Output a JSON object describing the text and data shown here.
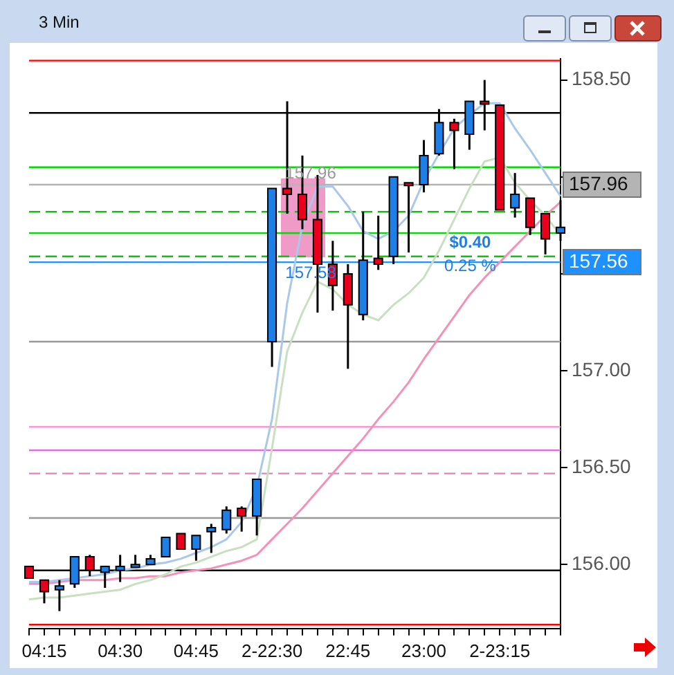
{
  "chart_data": {
    "type": "candlestick",
    "title": "3 Min",
    "categories": [
      null,
      "04:15",
      null,
      null,
      null,
      null,
      "04:30",
      null,
      null,
      null,
      null,
      "04:45",
      null,
      null,
      null,
      null,
      "2-22:30",
      null,
      null,
      null,
      null,
      "22:45",
      null,
      null,
      null,
      null,
      "23:00",
      null,
      null,
      null,
      null,
      "2-23:15",
      null,
      null,
      null,
      null
    ],
    "ohlc": [
      [
        155.99,
        155.99,
        155.93,
        155.93
      ],
      [
        155.92,
        155.92,
        155.8,
        155.86
      ],
      [
        155.87,
        155.92,
        155.76,
        155.89
      ],
      [
        155.9,
        156.04,
        155.88,
        156.04
      ],
      [
        156.04,
        156.05,
        155.94,
        155.97
      ],
      [
        155.96,
        155.99,
        155.88,
        155.99
      ],
      [
        155.97,
        156.05,
        155.91,
        155.99
      ],
      [
        155.99,
        156.05,
        155.99,
        156.0
      ],
      [
        156.0,
        156.05,
        156.0,
        156.03
      ],
      [
        156.04,
        156.14,
        156.04,
        156.14
      ],
      [
        156.16,
        156.16,
        156.08,
        156.08
      ],
      [
        156.08,
        156.15,
        156.02,
        156.15
      ],
      [
        156.17,
        156.21,
        156.06,
        156.19
      ],
      [
        156.18,
        156.3,
        156.16,
        156.28
      ],
      [
        156.29,
        156.3,
        156.17,
        156.25
      ],
      [
        156.25,
        156.44,
        156.15,
        156.44
      ],
      [
        157.15,
        157.94,
        157.02,
        157.94
      ],
      [
        157.94,
        158.39,
        157.81,
        157.91
      ],
      [
        157.91,
        158.11,
        157.73,
        157.78
      ],
      [
        157.78,
        158.01,
        157.3,
        157.55
      ],
      [
        157.55,
        157.67,
        157.31,
        157.44
      ],
      [
        157.5,
        157.55,
        157.01,
        157.34
      ],
      [
        157.29,
        157.82,
        157.26,
        157.57
      ],
      [
        157.58,
        157.8,
        157.52,
        157.55
      ],
      [
        157.59,
        158.0,
        157.55,
        158.0
      ],
      [
        157.97,
        157.97,
        157.61,
        157.96
      ],
      [
        157.96,
        158.19,
        157.92,
        158.11
      ],
      [
        158.12,
        158.35,
        158.11,
        158.28
      ],
      [
        158.28,
        158.3,
        158.04,
        158.24
      ],
      [
        158.22,
        158.39,
        158.14,
        158.39
      ],
      [
        158.39,
        158.5,
        158.24,
        158.38
      ],
      [
        158.37,
        158.37,
        157.83,
        157.83
      ],
      [
        157.84,
        158.02,
        157.79,
        157.91
      ],
      [
        157.89,
        157.89,
        157.7,
        157.74
      ],
      [
        157.81,
        157.81,
        157.6,
        157.68
      ],
      [
        157.71,
        157.88,
        157.67,
        157.74
      ]
    ],
    "colors": [
      "#e8001c",
      "#e8001c",
      "#1e7fe6",
      "#1e7fe6",
      "#e8001c",
      "#1e7fe6",
      "#1e7fe6",
      "#1e7fe6",
      "#1e7fe6",
      "#1e7fe6",
      "#e8001c",
      "#1e7fe6",
      "#1e7fe6",
      "#1e7fe6",
      "#e8001c",
      "#1e7fe6",
      "#1e7fe6",
      "#e8001c",
      "#e8001c",
      "#e8001c",
      "#e8001c",
      "#e8001c",
      "#1e7fe6",
      "#e8001c",
      "#1e7fe6",
      "#e8001c",
      "#1e7fe6",
      "#1e7fe6",
      "#e8001c",
      "#1e7fe6",
      "#e8001c",
      "#e8001c",
      "#1e7fe6",
      "#e8001c",
      "#e8001c",
      "#1e7fe6"
    ],
    "series": [
      {
        "type": "line",
        "color": "#a9c8ec",
        "values": [
          155.91,
          155.91,
          155.92,
          155.93,
          155.94,
          155.95,
          155.97,
          155.98,
          156.0,
          156.01,
          156.03,
          156.06,
          156.09,
          156.13,
          156.22,
          156.4,
          156.75,
          157.35,
          157.75,
          157.95,
          157.95,
          157.85,
          157.72,
          157.68,
          157.72,
          157.8,
          157.98,
          158.12,
          158.25,
          158.32,
          158.38,
          158.38,
          158.25,
          158.14,
          158.02,
          157.9
        ]
      },
      {
        "type": "line",
        "color": "#c6e0c0",
        "values": [
          155.82,
          155.83,
          155.83,
          155.84,
          155.85,
          155.86,
          155.87,
          155.9,
          155.92,
          155.95,
          155.99,
          156.01,
          156.04,
          156.07,
          156.09,
          156.13,
          156.6,
          157.1,
          157.3,
          157.46,
          157.42,
          157.34,
          157.29,
          157.26,
          157.34,
          157.4,
          157.48,
          157.62,
          157.78,
          157.94,
          158.08,
          158.1,
          157.97,
          157.88,
          157.8,
          157.7
        ]
      },
      {
        "type": "line",
        "color": "#f590b8",
        "values": [
          155.9,
          155.9,
          155.91,
          155.92,
          155.92,
          155.92,
          155.93,
          155.93,
          155.94,
          155.94,
          155.96,
          155.97,
          155.98,
          156.0,
          156.02,
          156.05,
          156.13,
          156.21,
          156.29,
          156.38,
          156.47,
          156.56,
          156.65,
          156.75,
          156.84,
          156.94,
          157.06,
          157.17,
          157.28,
          157.39,
          157.48,
          157.56,
          157.64,
          157.72,
          157.8,
          157.87
        ]
      }
    ],
    "ylim": [
      155.67,
      158.61
    ],
    "yticks": [
      {
        "value": 156,
        "label": "156.00"
      },
      {
        "value": 156.5,
        "label": "156.50"
      },
      {
        "value": 157,
        "label": "157.00"
      },
      {
        "value": 157.5,
        "label": null
      },
      {
        "value": 158,
        "label": null
      },
      {
        "value": 158.5,
        "label": "158.50"
      }
    ],
    "ref_lines": [
      {
        "axis": "y",
        "value": 158.6,
        "color": "#ff0000",
        "line_style": "solid"
      },
      {
        "axis": "y",
        "value": 158.33,
        "color": "#000000",
        "line_style": "solid"
      },
      {
        "axis": "y",
        "value": 158.05,
        "color": "#00dd00",
        "line_style": "solid"
      },
      {
        "axis": "y",
        "value": 157.96,
        "label": "157.96",
        "color": "#b4b4b4",
        "line_style": "solid"
      },
      {
        "axis": "y",
        "value": 157.82,
        "color": "#00cc00",
        "line_style": "dashed"
      },
      {
        "axis": "y",
        "value": 157.71,
        "color": "#00dd00",
        "line_style": "solid"
      },
      {
        "axis": "y",
        "value": 157.59,
        "color": "#00cc00",
        "line_style": "dashed"
      },
      {
        "axis": "y",
        "value": 157.56,
        "label": "157.56",
        "color": "#1e90ff",
        "line_style": "solid"
      },
      {
        "axis": "y",
        "value": 157.15,
        "color": "#999999",
        "line_style": "solid"
      },
      {
        "axis": "y",
        "value": 156.71,
        "color": "#f59ad0",
        "line_style": "solid"
      },
      {
        "axis": "y",
        "value": 156.59,
        "color": "#ee66dd",
        "line_style": "solid"
      },
      {
        "axis": "y",
        "value": 156.47,
        "color": "#f07cb8",
        "line_style": "dashed"
      },
      {
        "axis": "y",
        "value": 156.24,
        "color": "#999999",
        "line_style": "solid"
      },
      {
        "axis": "y",
        "value": 155.97,
        "color": "#000000",
        "line_style": "solid"
      },
      {
        "axis": "y",
        "value": 155.69,
        "color": "#ff0000",
        "line_style": "solid"
      }
    ],
    "annotations": [
      "157.96",
      "157.58",
      "$0.40",
      "0.25 %"
    ],
    "legend": false,
    "grid": false
  }
}
